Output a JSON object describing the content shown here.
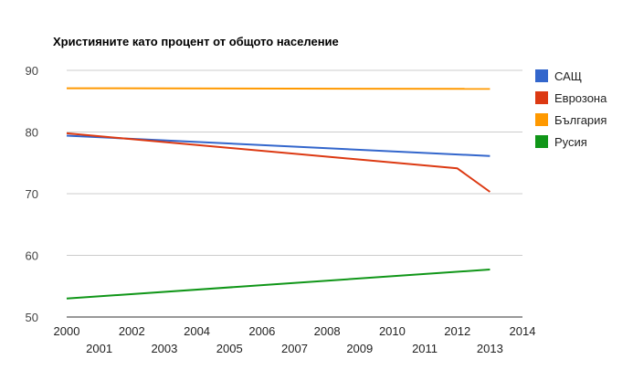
{
  "chart_data": {
    "type": "line",
    "title": "Християните като процент от общото население",
    "xlabel": "",
    "ylabel": "",
    "xlim": [
      2000,
      2014
    ],
    "ylim": [
      50,
      90
    ],
    "x_ticks_top": [
      2000,
      2002,
      2004,
      2006,
      2008,
      2010,
      2012,
      2014
    ],
    "x_ticks_bottom": [
      2001,
      2003,
      2005,
      2007,
      2009,
      2011,
      2013
    ],
    "y_ticks": [
      50,
      60,
      70,
      80,
      90
    ],
    "grid": true,
    "legend_position": "right",
    "series": [
      {
        "name": "САЩ",
        "color": "#3366cc",
        "x": [
          2000,
          2013
        ],
        "y": [
          79.4,
          76.1
        ]
      },
      {
        "name": "Еврозона",
        "color": "#dc3912",
        "x": [
          2000,
          2012,
          2013
        ],
        "y": [
          79.8,
          74.1,
          70.3
        ]
      },
      {
        "name": "България",
        "color": "#ff9900",
        "x": [
          2000,
          2013
        ],
        "y": [
          87.1,
          87.0
        ]
      },
      {
        "name": "Русия",
        "color": "#109618",
        "x": [
          2000,
          2013
        ],
        "y": [
          53.0,
          57.7
        ]
      }
    ]
  }
}
